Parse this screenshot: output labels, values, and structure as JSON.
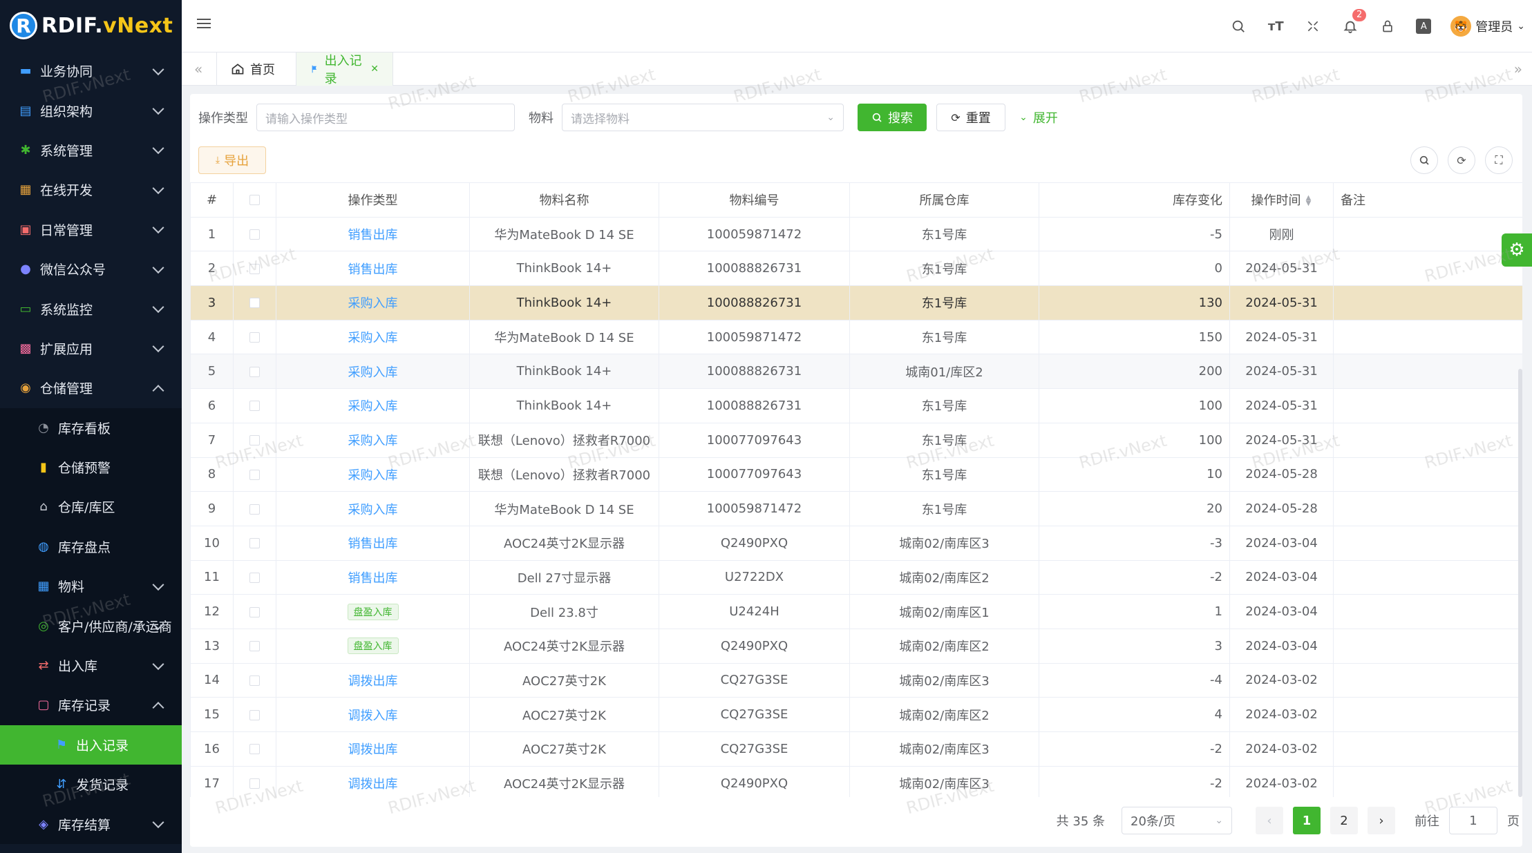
{
  "app": {
    "logo_letter": "R",
    "logo_main": "RDIF.",
    "logo_accent": "vNext",
    "watermark": "RDIF.vNext"
  },
  "sidebar": {
    "items": [
      {
        "label": "业务协同",
        "icon": "briefcase-icon",
        "color": "#409eff"
      },
      {
        "label": "组织架构",
        "icon": "org-chart-icon",
        "color": "#409eff"
      },
      {
        "label": "系统管理",
        "icon": "gear-icon",
        "color": "#41b630"
      },
      {
        "label": "在线开发",
        "icon": "grid-icon",
        "color": "#e6a23c"
      },
      {
        "label": "日常管理",
        "icon": "calendar-icon",
        "color": "#f56c6c"
      },
      {
        "label": "微信公众号",
        "icon": "wechat-icon",
        "color": "#7c83ff"
      },
      {
        "label": "系统监控",
        "icon": "monitor-icon",
        "color": "#41b630"
      },
      {
        "label": "扩展应用",
        "icon": "apps-icon",
        "color": "#f56c9d"
      },
      {
        "label": "仓储管理",
        "icon": "warehouse-icon",
        "color": "#e6a23c"
      }
    ],
    "warehouse_sub": [
      {
        "label": "库存看板",
        "icon": "dashboard-icon"
      },
      {
        "label": "仓储预警",
        "icon": "warning-icon"
      },
      {
        "label": "仓库/库区",
        "icon": "warehouse-zone-icon"
      },
      {
        "label": "库存盘点",
        "icon": "inventory-check-icon"
      },
      {
        "label": "物料",
        "icon": "material-icon"
      },
      {
        "label": "客户/供应商/承运商",
        "icon": "partner-icon"
      },
      {
        "label": "出入库",
        "icon": "in-out-icon"
      },
      {
        "label": "库存记录",
        "icon": "record-icon"
      }
    ],
    "records_sub": [
      {
        "label": "出入记录",
        "icon": "flag-icon"
      },
      {
        "label": "发货记录",
        "icon": "shipping-icon"
      }
    ],
    "last_item": {
      "label": "库存结算",
      "icon": "settlement-icon"
    }
  },
  "header": {
    "notification_count": "2",
    "user_name": "管理员"
  },
  "tabs": {
    "home": "首页",
    "active": "出入记录"
  },
  "search": {
    "op_type_label": "操作类型",
    "op_type_placeholder": "请输入操作类型",
    "material_label": "物料",
    "material_placeholder": "请选择物料",
    "search_btn": "搜索",
    "reset_btn": "重置",
    "expand_btn": "展开"
  },
  "toolbar": {
    "export_btn": "导出"
  },
  "table": {
    "headers": {
      "index": "#",
      "op_type": "操作类型",
      "material_name": "物料名称",
      "material_code": "物料编号",
      "warehouse": "所属仓库",
      "stock_change": "库存变化",
      "op_time": "操作时间",
      "remark": "备注"
    },
    "rows": [
      {
        "no": "1",
        "op_type": "销售出库",
        "tag": false,
        "name": "华为MateBook D 14 SE",
        "code": "100059871472",
        "warehouse": "东1号库",
        "change": "-5",
        "time": "刚刚"
      },
      {
        "no": "2",
        "op_type": "销售出库",
        "tag": false,
        "name": "ThinkBook 14+",
        "code": "100088826731",
        "warehouse": "东1号库",
        "change": "0",
        "time": "2024-05-31"
      },
      {
        "no": "3",
        "op_type": "采购入库",
        "tag": false,
        "name": "ThinkBook 14+",
        "code": "100088826731",
        "warehouse": "东1号库",
        "change": "130",
        "time": "2024-05-31"
      },
      {
        "no": "4",
        "op_type": "采购入库",
        "tag": false,
        "name": "华为MateBook D 14 SE",
        "code": "100059871472",
        "warehouse": "东1号库",
        "change": "150",
        "time": "2024-05-31"
      },
      {
        "no": "5",
        "op_type": "采购入库",
        "tag": false,
        "name": "ThinkBook 14+",
        "code": "100088826731",
        "warehouse": "城南01/库区2",
        "change": "200",
        "time": "2024-05-31"
      },
      {
        "no": "6",
        "op_type": "采购入库",
        "tag": false,
        "name": "ThinkBook 14+",
        "code": "100088826731",
        "warehouse": "东1号库",
        "change": "100",
        "time": "2024-05-31"
      },
      {
        "no": "7",
        "op_type": "采购入库",
        "tag": false,
        "name": "联想（Lenovo）拯救者R7000",
        "code": "100077097643",
        "warehouse": "东1号库",
        "change": "100",
        "time": "2024-05-31"
      },
      {
        "no": "8",
        "op_type": "采购入库",
        "tag": false,
        "name": "联想（Lenovo）拯救者R7000",
        "code": "100077097643",
        "warehouse": "东1号库",
        "change": "10",
        "time": "2024-05-28"
      },
      {
        "no": "9",
        "op_type": "采购入库",
        "tag": false,
        "name": "华为MateBook D 14 SE",
        "code": "100059871472",
        "warehouse": "东1号库",
        "change": "20",
        "time": "2024-05-28"
      },
      {
        "no": "10",
        "op_type": "销售出库",
        "tag": false,
        "name": "AOC24英寸2K显示器",
        "code": "Q2490PXQ",
        "warehouse": "城南02/南库区3",
        "change": "-3",
        "time": "2024-03-04"
      },
      {
        "no": "11",
        "op_type": "销售出库",
        "tag": false,
        "name": "Dell 27寸显示器",
        "code": "U2722DX",
        "warehouse": "城南02/南库区2",
        "change": "-2",
        "time": "2024-03-04"
      },
      {
        "no": "12",
        "op_type": "盘盈入库",
        "tag": true,
        "name": "Dell 23.8寸",
        "code": "U2424H",
        "warehouse": "城南02/南库区1",
        "change": "1",
        "time": "2024-03-04"
      },
      {
        "no": "13",
        "op_type": "盘盈入库",
        "tag": true,
        "name": "AOC24英寸2K显示器",
        "code": "Q2490PXQ",
        "warehouse": "城南02/南库区2",
        "change": "3",
        "time": "2024-03-04"
      },
      {
        "no": "14",
        "op_type": "调拨出库",
        "tag": false,
        "name": "AOC27英寸2K",
        "code": "CQ27G3SE",
        "warehouse": "城南02/南库区3",
        "change": "-4",
        "time": "2024-03-02"
      },
      {
        "no": "15",
        "op_type": "调拨入库",
        "tag": false,
        "name": "AOC27英寸2K",
        "code": "CQ27G3SE",
        "warehouse": "城南02/南库区2",
        "change": "4",
        "time": "2024-03-02"
      },
      {
        "no": "16",
        "op_type": "调拨出库",
        "tag": false,
        "name": "AOC27英寸2K",
        "code": "CQ27G3SE",
        "warehouse": "城南02/南库区3",
        "change": "-2",
        "time": "2024-03-02"
      },
      {
        "no": "17",
        "op_type": "调拨出库",
        "tag": false,
        "name": "AOC24英寸2K显示器",
        "code": "Q2490PXQ",
        "warehouse": "城南02/南库区3",
        "change": "-2",
        "time": "2024-03-02"
      }
    ]
  },
  "pagination": {
    "total": "共 35 条",
    "page_size": "20条/页",
    "pages": [
      "1",
      "2"
    ],
    "current": "1",
    "goto_label": "前往",
    "goto_value": "1",
    "page_suffix": "页"
  },
  "colors": {
    "accent": "#41b630",
    "link": "#409eff",
    "sidebar_bg": "#0f1929"
  }
}
